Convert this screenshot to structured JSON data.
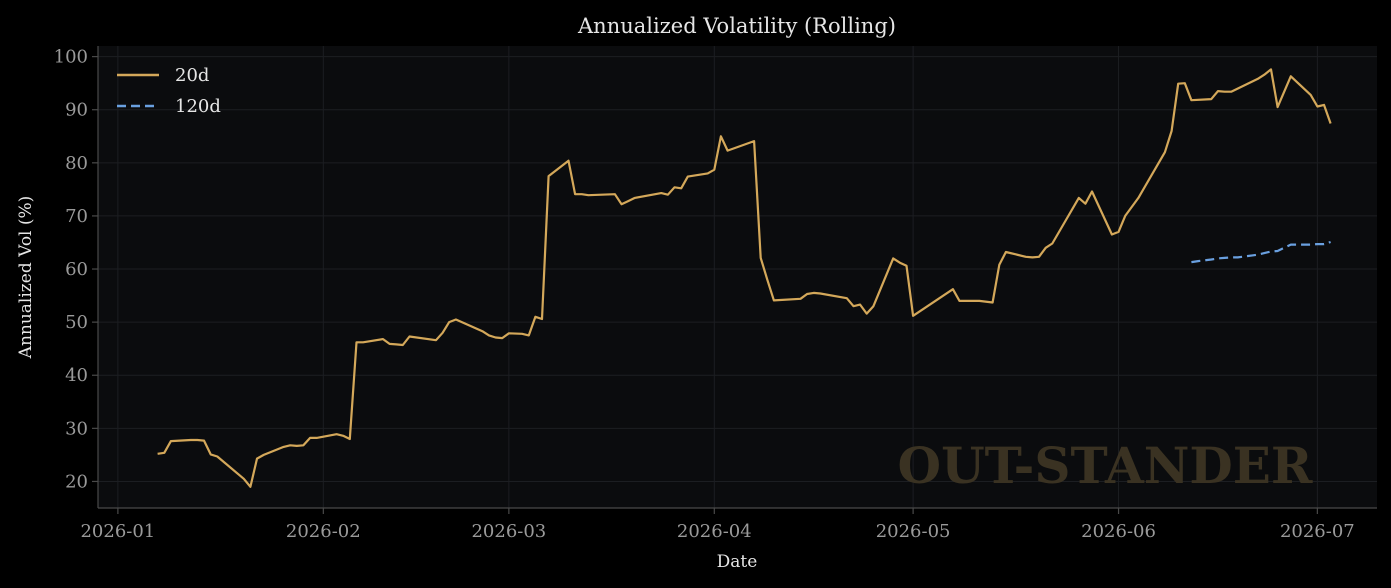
{
  "colors": {
    "figure_bg": "#000000",
    "plot_bg": "#0b0c0e",
    "grid": "#1c1e22",
    "axis": "#4a4a4a",
    "tick_label": "#9a9a9a",
    "text": "#e6e6e6",
    "series_20d": "#d4a85a",
    "series_120d": "#6aa0e0",
    "watermark": "#3a3222"
  },
  "watermark": "OUT-STANDER",
  "chart_data": {
    "type": "line",
    "title": "Annualized Volatility (Rolling)",
    "xlabel": "Date",
    "ylabel": "Annualized Vol (%)",
    "xlim": [
      "2025-12-29",
      "2026-07-10"
    ],
    "ylim": [
      15,
      102
    ],
    "x_ticks": [
      "2026-01-01",
      "2026-02-01",
      "2026-03-01",
      "2026-04-01",
      "2026-05-01",
      "2026-06-01",
      "2026-07-01"
    ],
    "x_tick_labels": [
      "2026-01",
      "2026-02",
      "2026-03",
      "2026-04",
      "2026-05",
      "2026-06",
      "2026-07"
    ],
    "y_ticks": [
      20,
      30,
      40,
      50,
      60,
      70,
      80,
      90,
      100
    ],
    "grid": true,
    "legend": "top-left",
    "series": [
      {
        "name": "20d",
        "style": "solid",
        "points": [
          [
            "2026-01-07",
            25.2
          ],
          [
            "2026-01-08",
            25.4
          ],
          [
            "2026-01-09",
            27.6
          ],
          [
            "2026-01-12",
            27.8
          ],
          [
            "2026-01-13",
            27.8
          ],
          [
            "2026-01-14",
            27.7
          ],
          [
            "2026-01-15",
            25.1
          ],
          [
            "2026-01-16",
            24.7
          ],
          [
            "2026-01-20",
            20.5
          ],
          [
            "2026-01-21",
            19.0
          ],
          [
            "2026-01-22",
            24.3
          ],
          [
            "2026-01-23",
            25.0
          ],
          [
            "2026-01-26",
            26.5
          ],
          [
            "2026-01-27",
            26.8
          ],
          [
            "2026-01-28",
            26.7
          ],
          [
            "2026-01-29",
            26.8
          ],
          [
            "2026-01-30",
            28.2
          ],
          [
            "2026-01-31",
            28.2
          ],
          [
            "2026-02-03",
            28.9
          ],
          [
            "2026-02-04",
            28.6
          ],
          [
            "2026-02-05",
            28.0
          ],
          [
            "2026-02-06",
            46.2
          ],
          [
            "2026-02-07",
            46.2
          ],
          [
            "2026-02-10",
            46.8
          ],
          [
            "2026-02-11",
            45.9
          ],
          [
            "2026-02-12",
            45.8
          ],
          [
            "2026-02-13",
            45.7
          ],
          [
            "2026-02-14",
            47.3
          ],
          [
            "2026-02-18",
            46.6
          ],
          [
            "2026-02-19",
            48.0
          ],
          [
            "2026-02-20",
            50.0
          ],
          [
            "2026-02-21",
            50.5
          ],
          [
            "2026-02-25",
            48.3
          ],
          [
            "2026-02-26",
            47.5
          ],
          [
            "2026-02-27",
            47.1
          ],
          [
            "2026-02-28",
            47.0
          ],
          [
            "2026-03-01",
            47.9
          ],
          [
            "2026-03-03",
            47.8
          ],
          [
            "2026-03-04",
            47.5
          ],
          [
            "2026-03-05",
            51.0
          ],
          [
            "2026-03-06",
            50.6
          ],
          [
            "2026-03-07",
            77.5
          ],
          [
            "2026-03-10",
            80.4
          ],
          [
            "2026-03-11",
            74.1
          ],
          [
            "2026-03-12",
            74.1
          ],
          [
            "2026-03-13",
            73.9
          ],
          [
            "2026-03-17",
            74.1
          ],
          [
            "2026-03-18",
            72.2
          ],
          [
            "2026-03-19",
            72.8
          ],
          [
            "2026-03-20",
            73.4
          ],
          [
            "2026-03-24",
            74.3
          ],
          [
            "2026-03-25",
            74.0
          ],
          [
            "2026-03-26",
            75.4
          ],
          [
            "2026-03-27",
            75.2
          ],
          [
            "2026-03-28",
            77.4
          ],
          [
            "2026-03-31",
            78.0
          ],
          [
            "2026-04-01",
            78.7
          ],
          [
            "2026-04-02",
            85.0
          ],
          [
            "2026-04-03",
            82.3
          ],
          [
            "2026-04-07",
            84.1
          ],
          [
            "2026-04-08",
            62.1
          ],
          [
            "2026-04-09",
            58.0
          ],
          [
            "2026-04-10",
            54.1
          ],
          [
            "2026-04-14",
            54.4
          ],
          [
            "2026-04-15",
            55.3
          ],
          [
            "2026-04-16",
            55.5
          ],
          [
            "2026-04-17",
            55.4
          ],
          [
            "2026-04-21",
            54.5
          ],
          [
            "2026-04-22",
            53.0
          ],
          [
            "2026-04-23",
            53.3
          ],
          [
            "2026-04-24",
            51.6
          ],
          [
            "2026-04-25",
            53.0
          ],
          [
            "2026-04-28",
            62.0
          ],
          [
            "2026-04-29",
            61.2
          ],
          [
            "2026-04-30",
            60.6
          ],
          [
            "2026-05-01",
            51.2
          ],
          [
            "2026-05-07",
            56.2
          ],
          [
            "2026-05-08",
            54.0
          ],
          [
            "2026-05-11",
            54.0
          ],
          [
            "2026-05-13",
            53.7
          ],
          [
            "2026-05-14",
            60.8
          ],
          [
            "2026-05-15",
            63.2
          ],
          [
            "2026-05-18",
            62.3
          ],
          [
            "2026-05-19",
            62.2
          ],
          [
            "2026-05-20",
            62.3
          ],
          [
            "2026-05-21",
            64.0
          ],
          [
            "2026-05-22",
            64.8
          ],
          [
            "2026-05-26",
            73.4
          ],
          [
            "2026-05-27",
            72.3
          ],
          [
            "2026-05-28",
            74.6
          ],
          [
            "2026-05-31",
            66.5
          ],
          [
            "2026-06-01",
            67.0
          ],
          [
            "2026-06-02",
            70.0
          ],
          [
            "2026-06-04",
            73.4
          ],
          [
            "2026-06-08",
            82.0
          ],
          [
            "2026-06-09",
            86.0
          ],
          [
            "2026-06-10",
            94.9
          ],
          [
            "2026-06-11",
            95.0
          ],
          [
            "2026-06-12",
            91.8
          ],
          [
            "2026-06-15",
            92.0
          ],
          [
            "2026-06-16",
            93.5
          ],
          [
            "2026-06-17",
            93.4
          ],
          [
            "2026-06-18",
            93.4
          ],
          [
            "2026-06-22",
            95.8
          ],
          [
            "2026-06-23",
            96.6
          ],
          [
            "2026-06-24",
            97.6
          ],
          [
            "2026-06-25",
            90.5
          ],
          [
            "2026-06-27",
            96.3
          ],
          [
            "2026-06-30",
            92.8
          ],
          [
            "2026-07-01",
            90.6
          ],
          [
            "2026-07-02",
            90.9
          ],
          [
            "2026-07-03",
            87.4
          ]
        ]
      },
      {
        "name": "120d",
        "style": "dashed",
        "points": [
          [
            "2026-06-12",
            61.3
          ],
          [
            "2026-06-13",
            61.5
          ],
          [
            "2026-06-15",
            61.8
          ],
          [
            "2026-06-16",
            62.0
          ],
          [
            "2026-06-17",
            62.1
          ],
          [
            "2026-06-18",
            62.2
          ],
          [
            "2026-06-19",
            62.2
          ],
          [
            "2026-06-22",
            62.7
          ],
          [
            "2026-06-23",
            63.0
          ],
          [
            "2026-06-24",
            63.3
          ],
          [
            "2026-06-25",
            63.4
          ],
          [
            "2026-06-26",
            64.0
          ],
          [
            "2026-06-27",
            64.6
          ],
          [
            "2026-06-30",
            64.6
          ],
          [
            "2026-07-01",
            64.7
          ],
          [
            "2026-07-02",
            64.7
          ],
          [
            "2026-07-03",
            65.1
          ]
        ]
      }
    ]
  }
}
